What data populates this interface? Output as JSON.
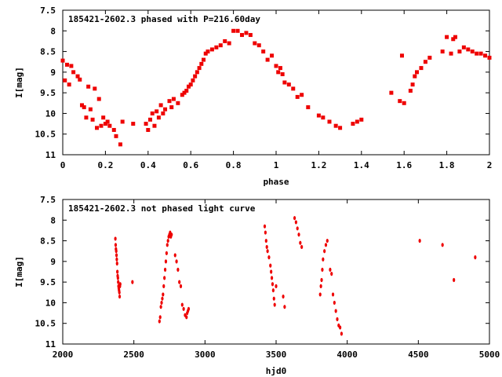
{
  "colors": {
    "points": "#ee0000",
    "axes": "#000000",
    "background": "#ffffff"
  },
  "chart_data": [
    {
      "type": "scatter",
      "title": "185421-2602.3 phased with P=216.60day",
      "xlabel": "phase",
      "ylabel": "I[mag]",
      "xlim": [
        0,
        2
      ],
      "ylim": [
        7.5,
        11
      ],
      "y_inverted": true,
      "grid": false,
      "xticks": [
        "0",
        "0.2",
        "0.4",
        "0.6",
        "0.8",
        "1",
        "1.2",
        "1.4",
        "1.6",
        "1.8",
        "2"
      ],
      "yticks": [
        "7.5",
        "8",
        "8.5",
        "9",
        "9.5",
        "10",
        "10.5",
        "11"
      ],
      "series": [
        {
          "x": [
            0.0,
            0.01,
            0.02,
            0.03,
            0.04,
            0.05,
            0.07,
            0.08,
            0.09,
            0.1,
            0.11,
            0.12,
            0.13,
            0.14,
            0.15,
            0.16,
            0.17,
            0.18,
            0.19,
            0.2,
            0.21,
            0.22,
            0.24,
            0.25,
            0.27,
            0.28,
            0.33,
            0.39,
            0.4,
            0.41,
            0.42,
            0.43,
            0.44,
            0.45,
            0.46,
            0.47,
            0.48,
            0.5,
            0.51,
            0.52,
            0.54,
            0.56,
            0.57,
            0.58,
            0.59,
            0.6,
            0.61,
            0.62,
            0.63,
            0.64,
            0.65,
            0.66,
            0.67,
            0.68,
            0.7,
            0.72,
            0.74,
            0.76,
            0.78,
            0.8,
            0.82,
            0.84,
            0.86,
            0.88,
            0.9,
            0.92,
            0.94,
            0.96,
            0.98,
            1.0,
            1.01,
            1.02,
            1.03,
            1.04,
            1.06,
            1.08,
            1.1,
            1.12,
            1.15,
            1.2,
            1.22,
            1.25,
            1.28,
            1.3,
            1.36,
            1.38,
            1.4,
            1.54,
            1.58,
            1.59,
            1.6,
            1.63,
            1.64,
            1.65,
            1.66,
            1.68,
            1.7,
            1.72,
            1.78,
            1.8,
            1.82,
            1.83,
            1.84,
            1.86,
            1.88,
            1.9,
            1.92,
            1.94,
            1.96,
            1.98,
            2.0
          ],
          "y": [
            8.72,
            9.2,
            8.82,
            9.3,
            8.85,
            9.0,
            9.1,
            9.18,
            9.8,
            9.85,
            10.1,
            9.35,
            9.9,
            10.15,
            9.4,
            10.35,
            9.65,
            10.3,
            10.1,
            10.25,
            10.2,
            10.3,
            10.4,
            10.55,
            10.75,
            10.2,
            10.25,
            10.25,
            10.4,
            10.15,
            10.0,
            10.3,
            9.95,
            10.1,
            9.8,
            10.0,
            9.9,
            9.7,
            9.85,
            9.65,
            9.75,
            9.55,
            9.5,
            9.45,
            9.35,
            9.3,
            9.2,
            9.1,
            9.0,
            8.9,
            8.8,
            8.7,
            8.55,
            8.5,
            8.45,
            8.4,
            8.35,
            8.25,
            8.3,
            8.0,
            8.0,
            8.1,
            8.05,
            8.1,
            8.3,
            8.35,
            8.5,
            8.7,
            8.6,
            8.85,
            9.0,
            8.9,
            9.05,
            9.25,
            9.3,
            9.4,
            9.6,
            9.55,
            9.85,
            10.05,
            10.1,
            10.2,
            10.3,
            10.35,
            10.25,
            10.2,
            10.15,
            9.5,
            9.7,
            8.6,
            9.75,
            9.45,
            9.3,
            9.1,
            9.0,
            8.9,
            8.75,
            8.65,
            8.5,
            8.15,
            8.55,
            8.2,
            8.15,
            8.5,
            8.4,
            8.45,
            8.5,
            8.55,
            8.55,
            8.6,
            8.65
          ]
        }
      ]
    },
    {
      "type": "scatter",
      "title": "185421-2602.3 not phased light curve",
      "xlabel": "hjd0",
      "ylabel": "I[mag]",
      "xlim": [
        2000,
        5000
      ],
      "ylim": [
        7.5,
        11
      ],
      "y_inverted": true,
      "grid": false,
      "xticks": [
        "2000",
        "2500",
        "3000",
        "3500",
        "4000",
        "4500",
        "5000"
      ],
      "yticks": [
        "7.5",
        "8",
        "8.5",
        "9",
        "9.5",
        "10",
        "10.5",
        "11"
      ],
      "series": [
        {
          "x": [
            2370,
            2372,
            2374,
            2376,
            2378,
            2380,
            2382,
            2384,
            2386,
            2388,
            2390,
            2392,
            2394,
            2396,
            2398,
            2400,
            2402,
            2404,
            2490,
            2680,
            2685,
            2690,
            2695,
            2700,
            2705,
            2710,
            2715,
            2720,
            2725,
            2730,
            2735,
            2740,
            2745,
            2750,
            2755,
            2760,
            2765,
            2790,
            2800,
            2810,
            2820,
            2830,
            2840,
            2850,
            2860,
            2870,
            2875,
            2880,
            2885,
            3420,
            3425,
            3430,
            3435,
            3440,
            3450,
            3460,
            3465,
            3470,
            3475,
            3480,
            3485,
            3490,
            3500,
            3550,
            3560,
            3630,
            3640,
            3650,
            3660,
            3670,
            3680,
            3810,
            3815,
            3820,
            3825,
            3830,
            3840,
            3850,
            3860,
            3880,
            3890,
            3900,
            3910,
            3920,
            3930,
            3940,
            3950,
            3960,
            4510,
            4670,
            4750,
            4900
          ],
          "y": [
            8.45,
            8.6,
            8.7,
            8.75,
            8.85,
            8.95,
            9.05,
            9.25,
            9.35,
            9.4,
            9.5,
            9.6,
            9.65,
            9.7,
            9.75,
            9.85,
            9.6,
            9.55,
            9.5,
            10.45,
            10.35,
            10.1,
            10.0,
            9.9,
            9.8,
            9.6,
            9.4,
            9.2,
            9.0,
            8.8,
            8.6,
            8.5,
            8.4,
            8.35,
            8.3,
            8.4,
            8.35,
            8.85,
            9.0,
            9.2,
            9.5,
            9.6,
            10.05,
            10.15,
            10.3,
            10.35,
            10.25,
            10.2,
            10.15,
            8.15,
            8.3,
            8.5,
            8.65,
            8.75,
            8.9,
            9.1,
            9.25,
            9.4,
            9.55,
            9.7,
            9.9,
            10.05,
            9.6,
            9.85,
            10.1,
            7.95,
            8.05,
            8.2,
            8.35,
            8.55,
            8.65,
            9.8,
            9.6,
            9.45,
            9.2,
            8.95,
            8.75,
            8.6,
            8.5,
            9.2,
            9.3,
            9.8,
            10.0,
            10.2,
            10.4,
            10.55,
            10.6,
            10.75,
            8.5,
            8.6,
            9.45,
            8.9
          ]
        }
      ]
    }
  ]
}
